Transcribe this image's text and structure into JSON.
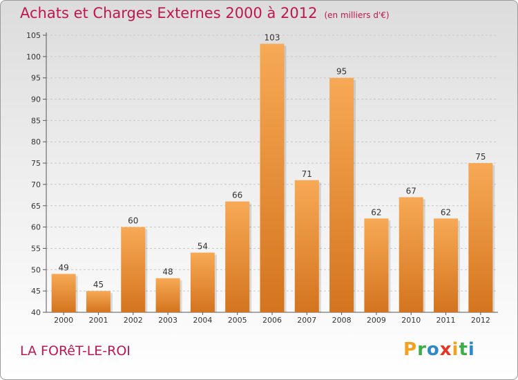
{
  "header": {
    "title": "Achats et Charges Externes 2000 à 2012",
    "unit": "(en milliers d'€)"
  },
  "footer": {
    "place": "LA FORêT-LE-ROI",
    "brand": "Proxiti",
    "brand_letters": [
      {
        "ch": "P",
        "color": "#f4a11d"
      },
      {
        "ch": "r",
        "color": "#3cae49"
      },
      {
        "ch": "o",
        "color": "#2f89c9"
      },
      {
        "ch": "x",
        "color": "#e5362b"
      },
      {
        "ch": "i",
        "color": "#f4a11d"
      },
      {
        "ch": "t",
        "color": "#3cae49"
      },
      {
        "ch": "i",
        "color": "#2f89c9"
      }
    ]
  },
  "colors": {
    "title": "#c0164f",
    "bar_top": "#f7a955",
    "bar_bottom": "#d4741e"
  },
  "chart_data": {
    "type": "bar",
    "title": "Achats et Charges Externes 2000 à 2012",
    "subtitle": "(en milliers d'€)",
    "categories": [
      "2000",
      "2001",
      "2002",
      "2003",
      "2004",
      "2005",
      "2006",
      "2007",
      "2008",
      "2009",
      "2010",
      "2011",
      "2012"
    ],
    "values": [
      49,
      45,
      60,
      48,
      54,
      66,
      103,
      71,
      95,
      62,
      67,
      62,
      75
    ],
    "ylim": [
      40,
      105
    ],
    "yticks": [
      40,
      45,
      50,
      55,
      60,
      65,
      70,
      75,
      80,
      85,
      90,
      95,
      100,
      105
    ],
    "grid": true,
    "xlabel": "",
    "ylabel": ""
  }
}
